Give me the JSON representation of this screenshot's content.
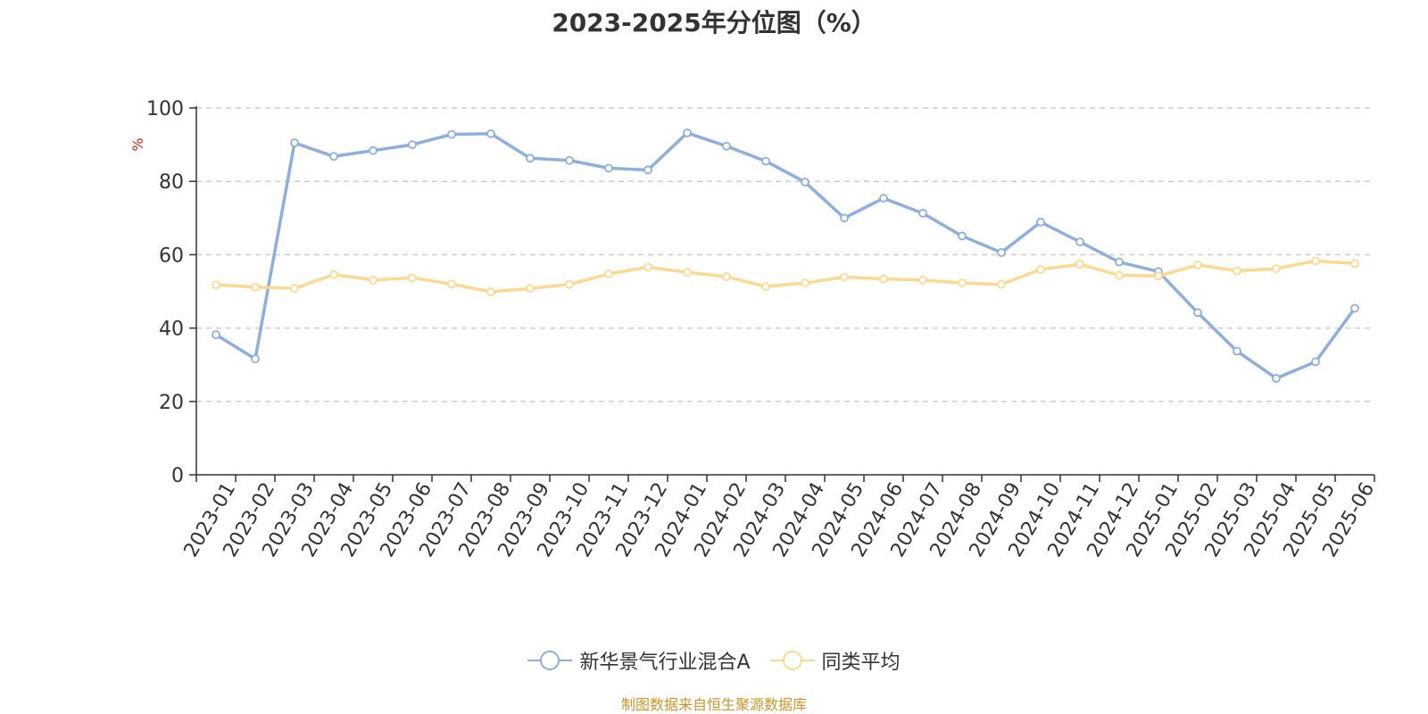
{
  "title": "2023-2025年分位图（%）",
  "source": "制图数据来自恒生聚源数据库",
  "colors": {
    "series_a": "#8eaedb",
    "series_b": "#fcd98f",
    "grid": "#cccccc",
    "axis": "#333333",
    "ylabel": "#e0201a",
    "source": "#c8962a"
  },
  "chart_data": {
    "type": "line",
    "ylabel": "%",
    "ylim": [
      0,
      100
    ],
    "yticks": [
      0,
      20,
      40,
      60,
      80,
      100
    ],
    "grid": true,
    "legend_position": "bottom-center",
    "x": [
      "2023-01",
      "2023-02",
      "2023-03",
      "2023-04",
      "2023-05",
      "2023-06",
      "2023-07",
      "2023-08",
      "2023-09",
      "2023-10",
      "2023-11",
      "2023-12",
      "2024-01",
      "2024-02",
      "2024-03",
      "2024-04",
      "2024-05",
      "2024-06",
      "2024-07",
      "2024-08",
      "2024-09",
      "2024-10",
      "2024-11",
      "2024-12",
      "2025-01",
      "2025-02",
      "2025-03",
      "2025-04",
      "2025-05",
      "2025-06"
    ],
    "series": [
      {
        "name": "新华景气行业混合A",
        "values": [
          38.2,
          31.6,
          90.5,
          86.8,
          88.4,
          90.0,
          92.8,
          93.0,
          86.3,
          85.7,
          83.6,
          83.1,
          93.2,
          89.6,
          85.5,
          79.8,
          70.0,
          75.4,
          71.3,
          65.1,
          60.6,
          68.9,
          63.5,
          58.0,
          55.4,
          44.2,
          33.7,
          26.3,
          30.8,
          45.4
        ]
      },
      {
        "name": "同类平均",
        "values": [
          51.8,
          51.2,
          50.8,
          54.6,
          53.1,
          53.7,
          52.0,
          49.9,
          50.8,
          51.9,
          54.8,
          56.6,
          55.2,
          54.0,
          51.3,
          52.3,
          53.9,
          53.4,
          53.1,
          52.3,
          51.9,
          56.0,
          57.4,
          54.4,
          54.2,
          57.2,
          55.6,
          56.2,
          58.3,
          57.6
        ]
      }
    ]
  }
}
